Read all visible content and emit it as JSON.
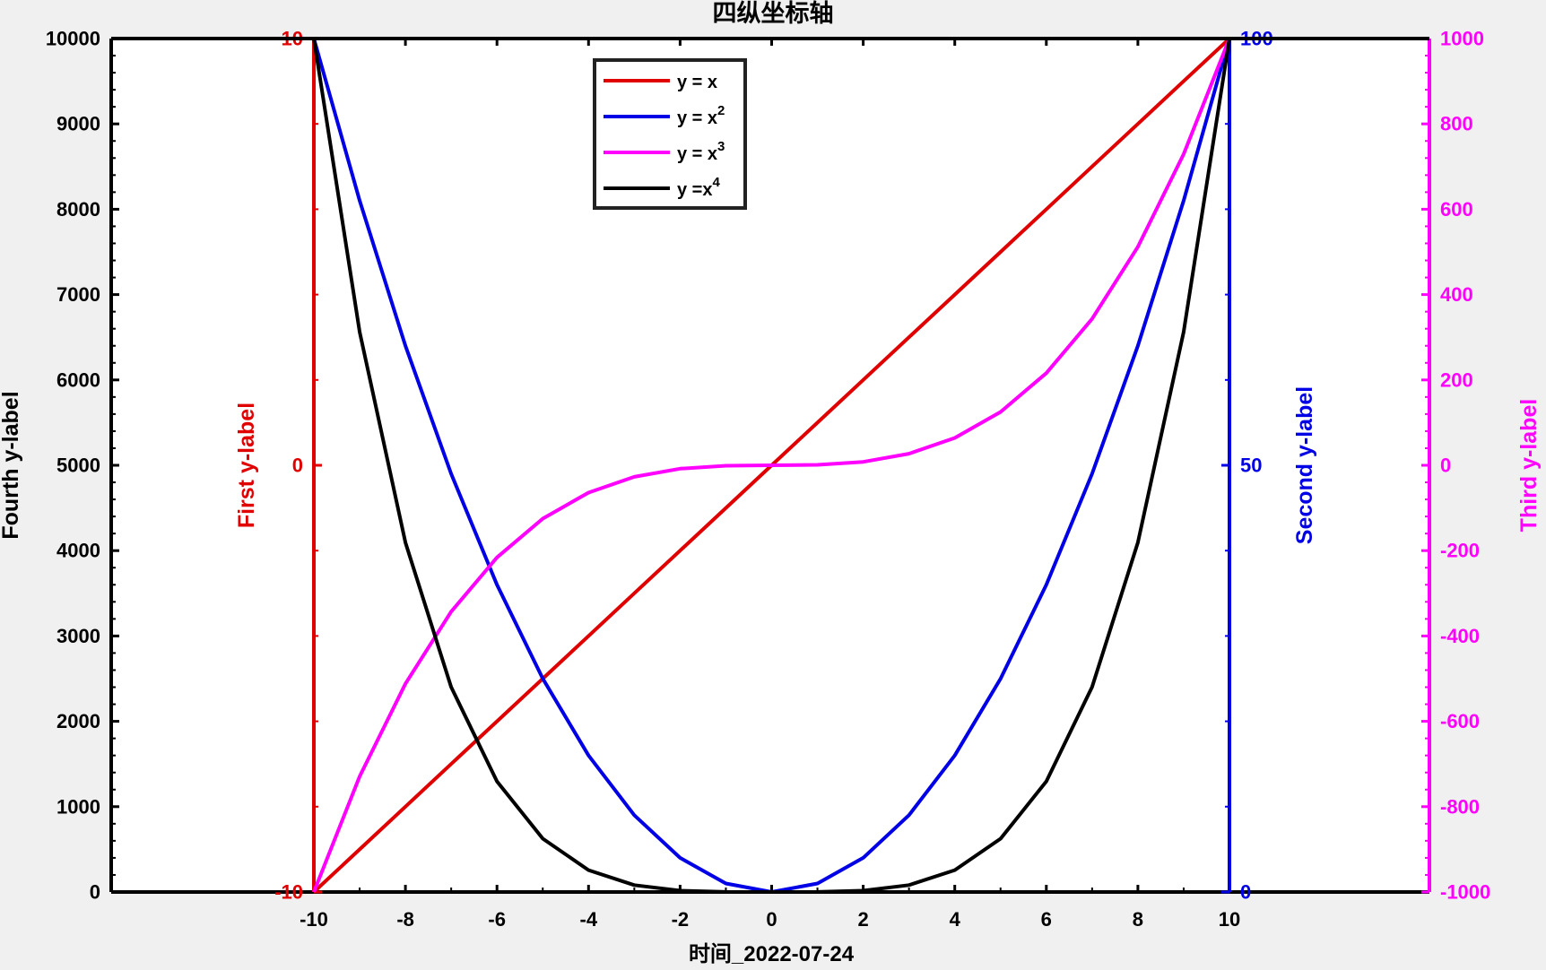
{
  "chart_data": {
    "type": "line",
    "title": "四纵坐标轴",
    "xlabel": "时间_2022-07-24",
    "xlim": [
      -10,
      10
    ],
    "xticks": [
      -10,
      -8,
      -6,
      -4,
      -2,
      0,
      2,
      4,
      6,
      8,
      10
    ],
    "x": [
      -10,
      -9,
      -8,
      -7,
      -6,
      -5,
      -4,
      -3,
      -2,
      -1,
      0,
      1,
      2,
      3,
      4,
      5,
      6,
      7,
      8,
      9,
      10
    ],
    "axes": [
      {
        "id": "first",
        "label": "First y-label",
        "color": "#e00000",
        "ylim": [
          -10,
          10
        ],
        "ticks": [
          -10,
          0,
          10
        ]
      },
      {
        "id": "second",
        "label": "Second y-label",
        "color": "#0000e6",
        "ylim": [
          0,
          100
        ],
        "ticks": [
          0,
          50,
          100
        ]
      },
      {
        "id": "third",
        "label": "Third y-label",
        "color": "#ff00ff",
        "ylim": [
          -1000,
          1000
        ],
        "ticks": [
          -1000,
          -800,
          -600,
          -400,
          -200,
          0,
          200,
          400,
          600,
          800,
          1000
        ]
      },
      {
        "id": "fourth",
        "label": "Fourth y-label",
        "color": "#000000",
        "ylim": [
          0,
          10000
        ],
        "ticks": [
          0,
          1000,
          2000,
          3000,
          4000,
          5000,
          6000,
          7000,
          8000,
          9000,
          10000
        ]
      }
    ],
    "series": [
      {
        "name": "y = x",
        "axis": "first",
        "color": "#e00000",
        "values": [
          -10,
          -9,
          -8,
          -7,
          -6,
          -5,
          -4,
          -3,
          -2,
          -1,
          0,
          1,
          2,
          3,
          4,
          5,
          6,
          7,
          8,
          9,
          10
        ]
      },
      {
        "name": "y = x2",
        "axis": "second",
        "color": "#0000e6",
        "values": [
          100,
          81,
          64,
          49,
          36,
          25,
          16,
          9,
          4,
          1,
          0,
          1,
          4,
          9,
          16,
          25,
          36,
          49,
          64,
          81,
          100
        ]
      },
      {
        "name": "y = x3",
        "axis": "third",
        "color": "#ff00ff",
        "values": [
          -1000,
          -729,
          -512,
          -343,
          -216,
          -125,
          -64,
          -27,
          -8,
          -1,
          0,
          1,
          8,
          27,
          64,
          125,
          216,
          343,
          512,
          729,
          1000
        ]
      },
      {
        "name": "y =x4",
        "axis": "fourth",
        "color": "#000000",
        "values": [
          10000,
          6561,
          4096,
          2401,
          1296,
          625,
          256,
          81,
          16,
          1,
          0,
          1,
          16,
          81,
          256,
          625,
          1296,
          2401,
          4096,
          6561,
          10000
        ]
      }
    ],
    "legend": {
      "position": "top-center",
      "entries": [
        {
          "base": "y = x",
          "sup": ""
        },
        {
          "base": "y = x",
          "sup": "2"
        },
        {
          "base": "y = x",
          "sup": "3"
        },
        {
          "base": "y =x",
          "sup": "4"
        }
      ]
    },
    "grid": false
  }
}
